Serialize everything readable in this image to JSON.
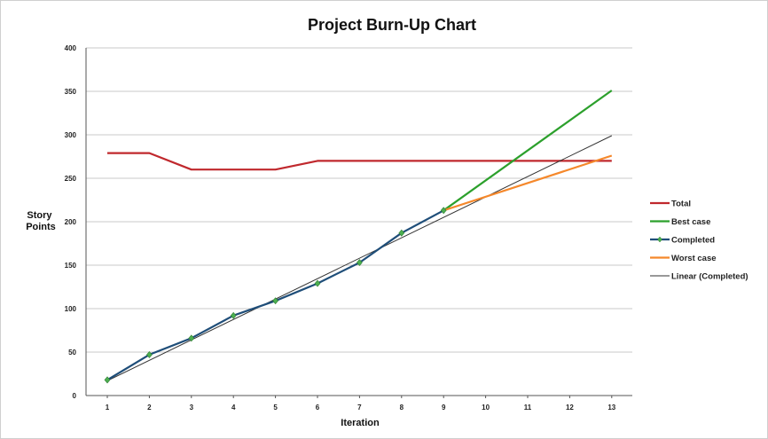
{
  "chart_data": {
    "type": "line",
    "title": "Project Burn-Up Chart",
    "xlabel": "Iteration",
    "ylabel": "Story Points",
    "ylim": [
      0,
      400
    ],
    "yticks": [
      0,
      50,
      100,
      150,
      200,
      250,
      300,
      350,
      400
    ],
    "categories": [
      "1",
      "2",
      "3",
      "4",
      "5",
      "6",
      "7",
      "8",
      "9",
      "10",
      "11",
      "12",
      "13"
    ],
    "grid": true,
    "legend_position": "right",
    "series": [
      {
        "name": "Total",
        "color": "#c0282d",
        "marker": false,
        "points": [
          [
            1,
            279
          ],
          [
            2,
            279
          ],
          [
            3,
            260
          ],
          [
            4,
            260
          ],
          [
            5,
            260
          ],
          [
            6,
            270
          ],
          [
            7,
            270
          ],
          [
            8,
            270
          ],
          [
            9,
            270
          ],
          [
            10,
            270
          ],
          [
            11,
            270
          ],
          [
            12,
            270
          ],
          [
            13,
            270
          ]
        ]
      },
      {
        "name": "Best case",
        "color": "#2ca02c",
        "marker": false,
        "points": [
          [
            9,
            213
          ],
          [
            13,
            351
          ]
        ]
      },
      {
        "name": "Completed",
        "color": "#1f4e79",
        "marker": true,
        "marker_color": "#4caf50",
        "points": [
          [
            1,
            18
          ],
          [
            2,
            47
          ],
          [
            3,
            66
          ],
          [
            4,
            92
          ],
          [
            5,
            109
          ],
          [
            6,
            129
          ],
          [
            7,
            153
          ],
          [
            8,
            187
          ],
          [
            9,
            213
          ]
        ]
      },
      {
        "name": "Worst case",
        "color": "#f5882b",
        "marker": false,
        "points": [
          [
            9,
            213
          ],
          [
            13,
            276
          ]
        ]
      },
      {
        "name": "Linear (Completed)",
        "color": "#333333",
        "marker": false,
        "points": [
          [
            1,
            17
          ],
          [
            13,
            299
          ]
        ]
      }
    ]
  }
}
